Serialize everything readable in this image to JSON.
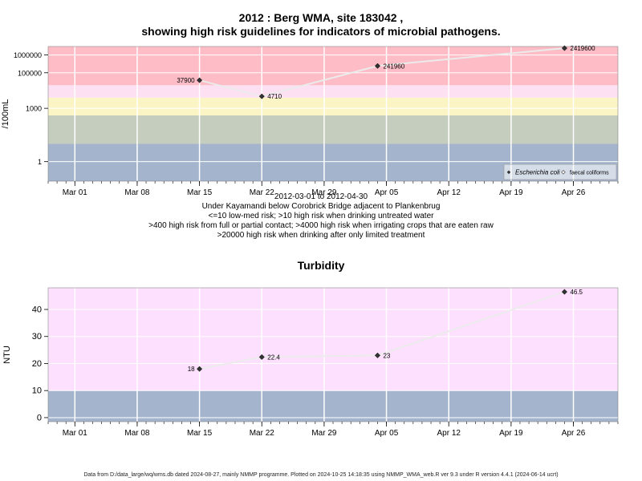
{
  "chart_data": [
    {
      "type": "line",
      "title_line1": "2012 : Berg WMA, site 183042 ,",
      "title_line2": "showing high risk guidelines for indicators of microbial pathogens.",
      "ylabel": "/100mL",
      "yscale": "log",
      "ylim": [
        0.08,
        3000000
      ],
      "xlim": [
        "2012-02-27",
        "2012-05-01"
      ],
      "x_ticks": [
        {
          "date": "2012-03-01",
          "label": "Mar 01"
        },
        {
          "date": "2012-03-08",
          "label": "Mar 08"
        },
        {
          "date": "2012-03-15",
          "label": "Mar 15"
        },
        {
          "date": "2012-03-22",
          "label": "Mar 22"
        },
        {
          "date": "2012-03-29",
          "label": "Mar 29"
        },
        {
          "date": "2012-04-05",
          "label": "Apr 05"
        },
        {
          "date": "2012-04-12",
          "label": "Apr 12"
        },
        {
          "date": "2012-04-19",
          "label": "Apr 19"
        },
        {
          "date": "2012-04-26",
          "label": "Apr 26"
        }
      ],
      "y_ticks": [
        {
          "value": 1,
          "label": "1"
        },
        {
          "value": 1000,
          "label": "1000"
        },
        {
          "value": 100000,
          "label": "100000"
        },
        {
          "value": 1000000,
          "label": "1000000"
        }
      ],
      "bands": [
        {
          "from": 0.08,
          "to": 10,
          "color": "#a3b4cc"
        },
        {
          "from": 10,
          "to": 400,
          "color": "#c5cdbf"
        },
        {
          "from": 400,
          "to": 4000,
          "color": "#fbf5c6"
        },
        {
          "from": 4000,
          "to": 20000,
          "color": "#fde0f2"
        },
        {
          "from": 20000,
          "to": 3000000,
          "color": "#fdbcc6"
        }
      ],
      "series": [
        {
          "name": "Escherichia coli",
          "points": [
            {
              "x": "2012-03-15",
              "y": 37900,
              "label": "37900"
            },
            {
              "x": "2012-03-22",
              "y": 4710,
              "label": "4710"
            },
            {
              "x": "2012-04-04",
              "y": 241960,
              "label": "241960"
            },
            {
              "x": "2012-04-25",
              "y": 2419600,
              "label": "2419600"
            }
          ]
        }
      ],
      "legend": {
        "position": "bottom-right",
        "items": [
          "Escherichia coli",
          "faecal coliforms"
        ]
      },
      "notes": [
        "2012-03-01 to 2012-04-30",
        "Under Kayamandi below Corobrick Bridge adjacent to Plankenbrug",
        "<=10 low-med risk; >10 high risk when drinking untreated water",
        ">400 high risk from full or partial contact; >4000 high risk when irrigating crops that are eaten raw",
        ">20000 high risk when drinking after only limited treatment"
      ]
    },
    {
      "type": "line",
      "title": "Turbidity",
      "ylabel": "NTU",
      "ylim": [
        -1.5,
        48
      ],
      "xlim": [
        "2012-02-27",
        "2012-05-01"
      ],
      "x_ticks": [
        {
          "date": "2012-03-01",
          "label": "Mar 01"
        },
        {
          "date": "2012-03-08",
          "label": "Mar 08"
        },
        {
          "date": "2012-03-15",
          "label": "Mar 15"
        },
        {
          "date": "2012-03-22",
          "label": "Mar 22"
        },
        {
          "date": "2012-03-29",
          "label": "Mar 29"
        },
        {
          "date": "2012-04-05",
          "label": "Apr 05"
        },
        {
          "date": "2012-04-12",
          "label": "Apr 12"
        },
        {
          "date": "2012-04-19",
          "label": "Apr 19"
        },
        {
          "date": "2012-04-26",
          "label": "Apr 26"
        }
      ],
      "y_ticks": [
        {
          "value": 0,
          "label": "0"
        },
        {
          "value": 10,
          "label": "10"
        },
        {
          "value": 20,
          "label": "20"
        },
        {
          "value": 30,
          "label": "30"
        },
        {
          "value": 40,
          "label": "40"
        }
      ],
      "bands": [
        {
          "from": -1.5,
          "to": 10,
          "color": "#a3b4cc"
        },
        {
          "from": 10,
          "to": 48,
          "color": "#fde0fd"
        }
      ],
      "series": [
        {
          "points": [
            {
              "x": "2012-03-15",
              "y": 18,
              "label": "18"
            },
            {
              "x": "2012-03-22",
              "y": 22.4,
              "label": "22.4"
            },
            {
              "x": "2012-04-04",
              "y": 23,
              "label": "23"
            },
            {
              "x": "2012-04-25",
              "y": 46.5,
              "label": "46.5"
            }
          ]
        }
      ]
    }
  ],
  "footer": "Data from D:/data_large/wq/wms.db dated 2024-08-27, mainly NMMP programme. Plotted on 2024-10-25 14:18:35 using NMMP_WMA_web.R ver 9.3 under R version 4.4.1 (2024-06-14 ucrt)"
}
